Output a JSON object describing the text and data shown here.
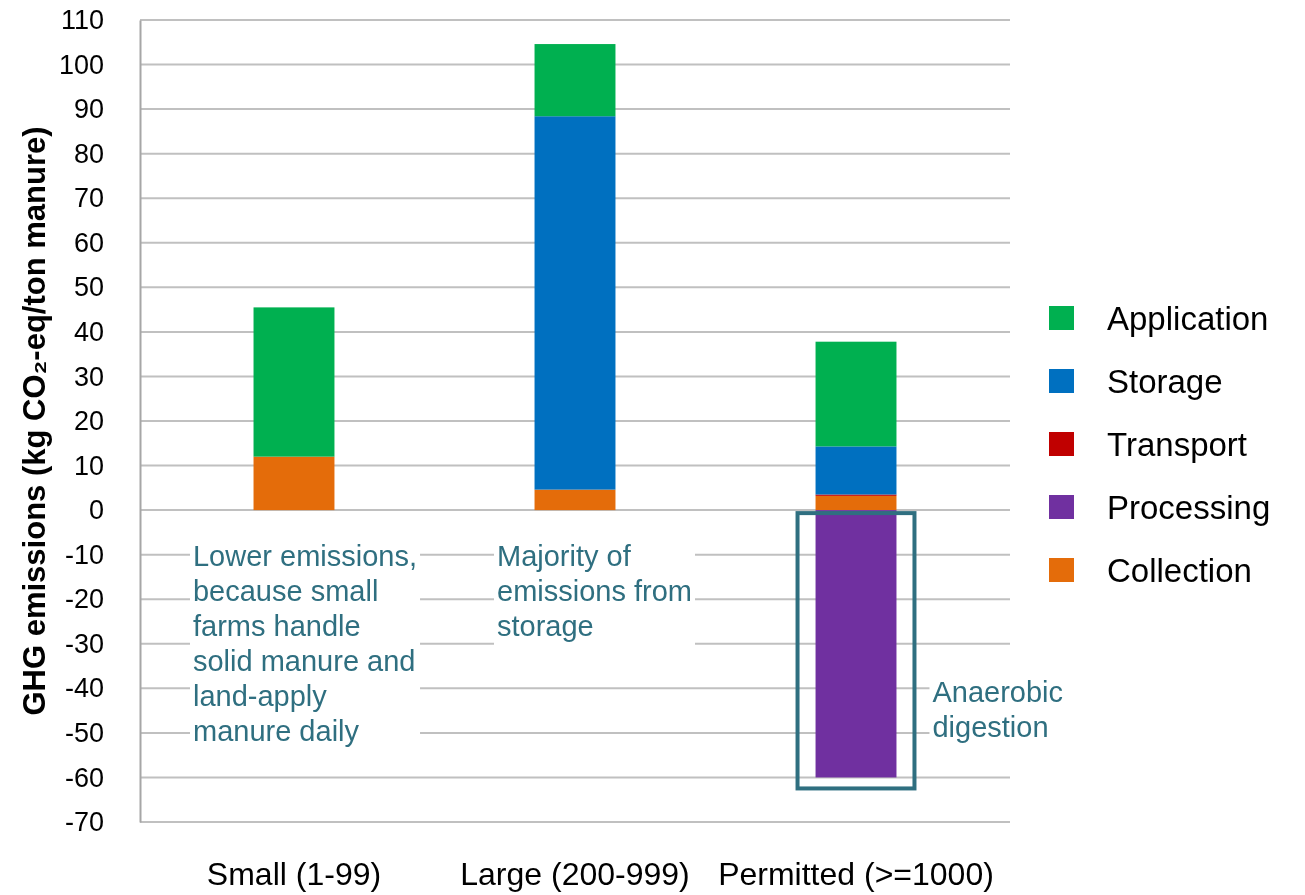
{
  "chart_data": {
    "type": "bar",
    "stacked": true,
    "ylabel": "GHG emissions (kg CO₂-eq/ton manure)",
    "categories": [
      "Small (1-99)",
      "Large (200-999)",
      "Permitted (>=1000)"
    ],
    "series": [
      {
        "name": "Collection",
        "color": "#e46c0a",
        "values": [
          12,
          4.6,
          3.2
        ]
      },
      {
        "name": "Processing",
        "color": "#7030a0",
        "values": [
          null,
          null,
          -60
        ]
      },
      {
        "name": "Transport",
        "color": "#c00000",
        "values": [
          null,
          null,
          0.3
        ]
      },
      {
        "name": "Storage",
        "color": "#0070c0",
        "values": [
          null,
          83.8,
          10.8
        ]
      },
      {
        "name": "Application",
        "color": "#00b050",
        "values": [
          33.5,
          16.2,
          23.5
        ]
      }
    ],
    "ylim": [
      -70,
      110
    ],
    "yticks": [
      -70,
      -60,
      -50,
      -40,
      -30,
      -20,
      -10,
      0,
      10,
      20,
      30,
      40,
      50,
      60,
      70,
      80,
      90,
      100,
      110
    ],
    "grid": "y",
    "legend": "right",
    "annotations": [
      "Lower emissions,\nbecause small\nfarms handle\nsolid manure and\nland-apply\nmanure daily",
      "Majority of\nemissions from\nstorage",
      "Anaerobic\ndigestion"
    ]
  }
}
